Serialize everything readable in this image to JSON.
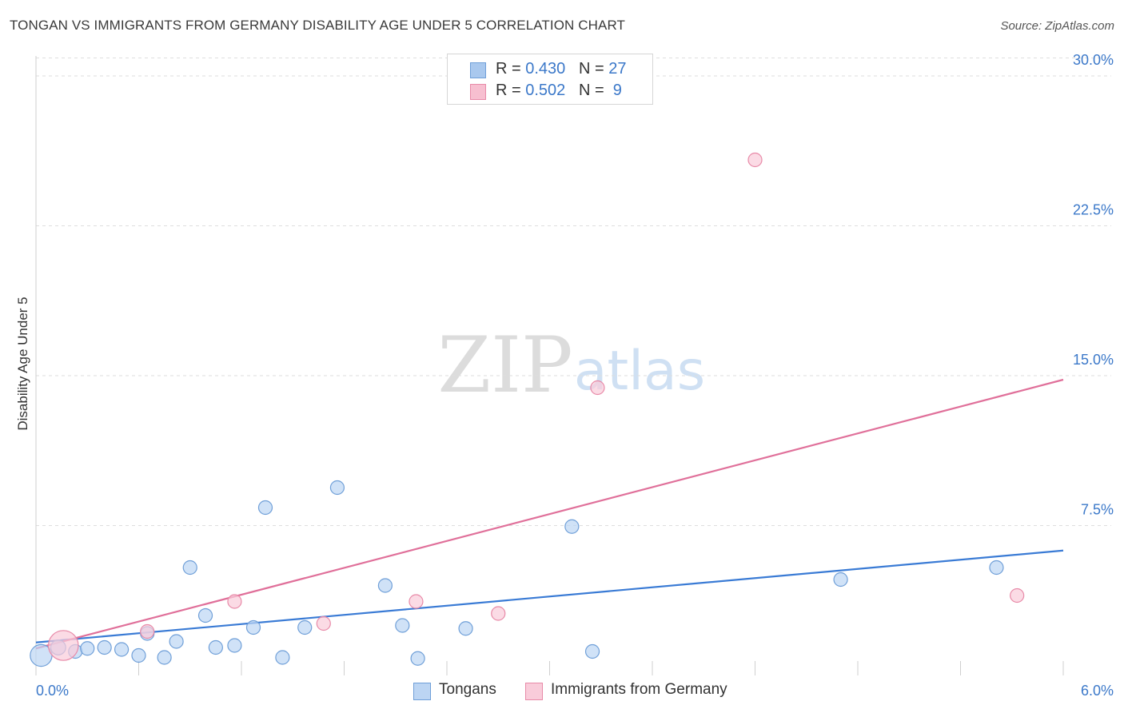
{
  "title": "TONGAN VS IMMIGRANTS FROM GERMANY DISABILITY AGE UNDER 5 CORRELATION CHART",
  "source": "Source: ZipAtlas.com",
  "watermark": {
    "zip": "ZIP",
    "atlas": "atlas"
  },
  "legend": {
    "rows": [
      {
        "r_label": "R = ",
        "r_value": "0.430",
        "n_label": "N = ",
        "n_value": "27",
        "color": "#a9c8ee",
        "border": "#6f9fd8"
      },
      {
        "r_label": "R = ",
        "r_value": "0.502",
        "n_label": "N = ",
        "n_value": " 9",
        "color": "#f7bfd0",
        "border": "#e88aa8"
      }
    ]
  },
  "bottom_legend": [
    {
      "label": "Tongans",
      "color": "#bcd5f3",
      "border": "#6f9fd8"
    },
    {
      "label": "Immigrants from Germany",
      "color": "#f9ccda",
      "border": "#e88aa8"
    }
  ],
  "chart_data": {
    "type": "scatter",
    "title": "TONGAN VS IMMIGRANTS FROM GERMANY DISABILITY AGE UNDER 5 CORRELATION CHART",
    "xlabel": "",
    "ylabel": "Disability Age Under 5",
    "xlim": [
      0,
      6.0
    ],
    "ylim": [
      0,
      31.0
    ],
    "x_tick_labels": [
      {
        "value": 0,
        "label": "0.0%"
      },
      {
        "value": 6.0,
        "label": "6.0%"
      }
    ],
    "y_tick_labels": [
      {
        "value": 7.5,
        "label": "7.5%"
      },
      {
        "value": 15.0,
        "label": "15.0%"
      },
      {
        "value": 22.5,
        "label": "22.5%"
      },
      {
        "value": 30.0,
        "label": "30.0%"
      }
    ],
    "grid": true,
    "series": [
      {
        "name": "Tongans",
        "color": "#6f9fd8",
        "fill": "#bcd5f3",
        "points": [
          [
            0.03,
            1.0,
            1.6
          ],
          [
            0.13,
            1.4,
            1.1
          ],
          [
            0.23,
            1.2,
            1.0
          ],
          [
            0.3,
            1.35,
            1.0
          ],
          [
            0.4,
            1.4,
            1.0
          ],
          [
            0.5,
            1.3,
            1.0
          ],
          [
            0.6,
            1.0,
            1.0
          ],
          [
            0.65,
            2.1,
            1.0
          ],
          [
            0.75,
            0.9,
            1.0
          ],
          [
            0.82,
            1.7,
            1.0
          ],
          [
            0.9,
            5.4,
            1.0
          ],
          [
            0.99,
            3.0,
            1.0
          ],
          [
            1.05,
            1.4,
            1.0
          ],
          [
            1.16,
            1.5,
            1.0
          ],
          [
            1.27,
            2.4,
            1.0
          ],
          [
            1.34,
            8.4,
            1.0
          ],
          [
            1.44,
            0.9,
            1.0
          ],
          [
            1.57,
            2.4,
            1.0
          ],
          [
            1.76,
            9.4,
            1.0
          ],
          [
            2.04,
            4.5,
            1.0
          ],
          [
            2.14,
            2.5,
            1.0
          ],
          [
            2.23,
            0.85,
            1.0
          ],
          [
            2.51,
            2.35,
            1.0
          ],
          [
            3.13,
            7.45,
            1.0
          ],
          [
            3.25,
            1.2,
            1.0
          ],
          [
            4.7,
            4.8,
            1.0
          ],
          [
            5.61,
            5.4,
            1.0
          ]
        ],
        "trend": [
          [
            0,
            1.65
          ],
          [
            6.0,
            6.25
          ]
        ]
      },
      {
        "name": "Immigrants from Germany",
        "color": "#e88aa8",
        "fill": "#f9ccda",
        "points": [
          [
            0.16,
            1.5,
            2.2
          ],
          [
            0.65,
            2.2,
            1.0
          ],
          [
            1.16,
            3.7,
            1.0
          ],
          [
            1.68,
            2.6,
            1.0
          ],
          [
            2.22,
            3.7,
            1.0
          ],
          [
            2.7,
            3.1,
            1.0
          ],
          [
            3.28,
            14.4,
            1.0
          ],
          [
            4.2,
            25.8,
            1.0
          ],
          [
            5.73,
            4.0,
            1.0
          ]
        ],
        "trend": [
          [
            0,
            1.35
          ],
          [
            6.0,
            14.8
          ]
        ]
      }
    ]
  }
}
